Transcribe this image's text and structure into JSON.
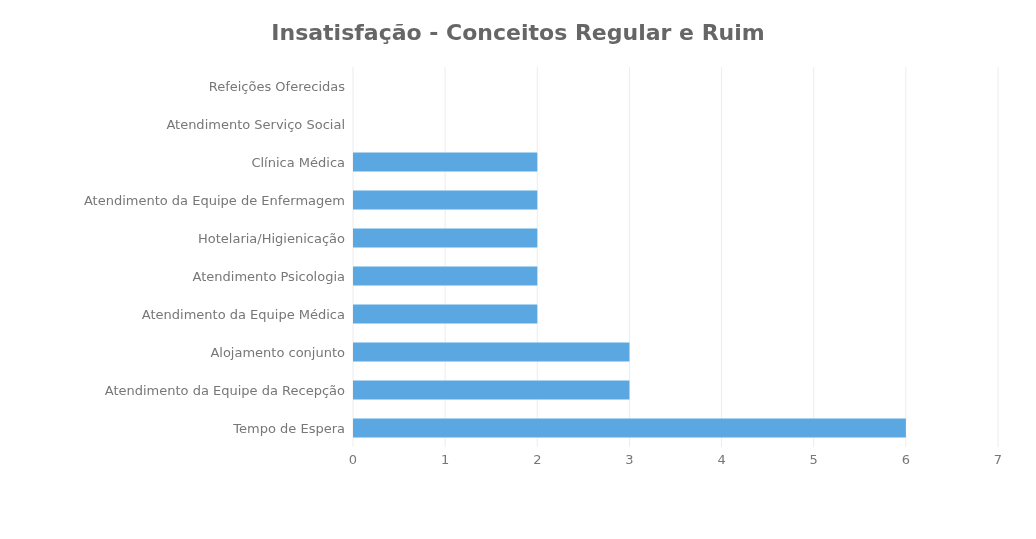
{
  "chart_data": {
    "type": "bar",
    "orientation": "horizontal",
    "title": "Insatisfação - Conceitos Regular e Ruim",
    "categories": [
      "Refeições Oferecidas",
      "Atendimento Serviço Social",
      "Clínica Médica",
      "Atendimento da Equipe de Enfermagem",
      "Hotelaria/Higienicação",
      "Atendimento Psicologia",
      "Atendimento da Equipe Médica",
      "Alojamento conjunto",
      "Atendimento da Equipe da Recepção",
      "Tempo de Espera"
    ],
    "values": [
      0,
      0,
      2,
      2,
      2,
      2,
      2,
      3,
      3,
      6
    ],
    "color": "#5aa7e2",
    "xlim": [
      0,
      7
    ],
    "xticks": [
      0,
      1,
      2,
      3,
      4,
      5,
      6,
      7
    ],
    "grid": "x"
  }
}
